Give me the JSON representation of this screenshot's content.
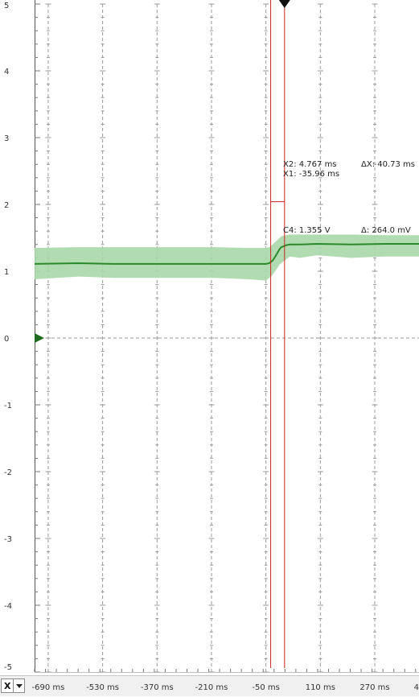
{
  "chart_data": {
    "type": "line",
    "title": "",
    "xlabel": "",
    "ylabel": "",
    "x_unit": "ms",
    "xlim": [
      -730,
      400
    ],
    "ylim": [
      -5,
      5
    ],
    "grid": true,
    "y_tick_labels": [
      "5",
      "4",
      "3",
      "2",
      "1",
      "0",
      "-1",
      "-2",
      "-3",
      "-4",
      "-5"
    ],
    "x_tick_labels": [
      "-690 ms",
      "-530 ms",
      "-370 ms",
      "-210 ms",
      "-50 ms",
      "110 ms",
      "270 ms",
      "4"
    ],
    "series": [
      {
        "color": "#2a8a2a",
        "envelope_color": "#a8d8a8",
        "x": [
          -730,
          -600,
          -500,
          -400,
          -300,
          -200,
          -100,
          -50,
          -40,
          -30,
          -20,
          -10,
          -5,
          0,
          10,
          20,
          50,
          100,
          200,
          300,
          400
        ],
        "y": [
          1.11,
          1.12,
          1.11,
          1.11,
          1.11,
          1.11,
          1.11,
          1.11,
          1.12,
          1.16,
          1.24,
          1.33,
          1.36,
          1.37,
          1.39,
          1.4,
          1.4,
          1.41,
          1.4,
          1.41,
          1.41
        ],
        "upper": [
          1.35,
          1.36,
          1.36,
          1.36,
          1.36,
          1.36,
          1.35,
          1.35,
          1.36,
          1.4,
          1.45,
          1.5,
          1.52,
          1.53,
          1.54,
          1.55,
          1.55,
          1.55,
          1.55,
          1.54,
          1.54
        ],
        "lower": [
          0.88,
          0.92,
          0.9,
          0.9,
          0.9,
          0.9,
          0.88,
          0.86,
          0.9,
          0.95,
          1.02,
          1.1,
          1.12,
          1.14,
          1.18,
          1.22,
          1.2,
          1.24,
          1.2,
          1.22,
          1.22
        ]
      }
    ],
    "cursors": {
      "x1": -35.96,
      "x2": 4.767,
      "level": 2.04,
      "color": "#cc2222"
    },
    "trigger_marker_x": 4.767,
    "ground_marker_y": 0,
    "readouts": {
      "x2": "X2: 4.767 ms",
      "x1": "X1: -35.96 ms",
      "dx": "ΔX: 40.73 ms",
      "c4": "C4: 1.355 V",
      "dy": "Δ: 264.0 mV"
    }
  },
  "axis_selector": {
    "label": "X"
  }
}
